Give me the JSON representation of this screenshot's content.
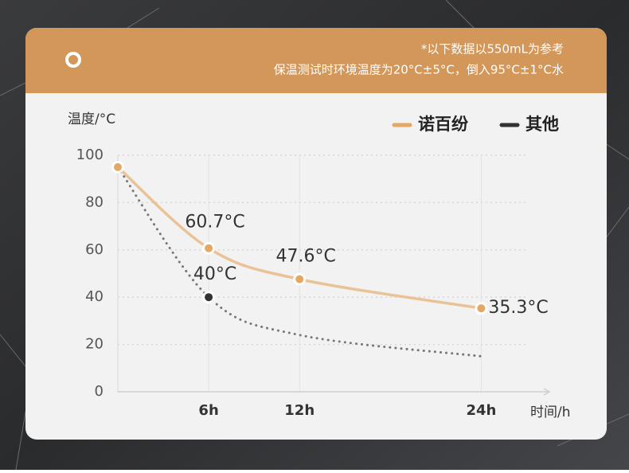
{
  "chart_data": {
    "type": "line",
    "notes": [
      "*以下数据以550mL为参考",
      "保温测试时环境温度为20°C±5°C，倒入95°C±1°C水"
    ],
    "y_label": "温度/°C",
    "x_label": "时间/h",
    "xlim": [
      0,
      28.5
    ],
    "ylim": [
      0,
      100
    ],
    "xticks": [
      {
        "value": 6,
        "label": "6h"
      },
      {
        "value": 12,
        "label": "12h"
      },
      {
        "value": 24,
        "label": "24h"
      }
    ],
    "yticks": [
      0,
      20,
      40,
      60,
      80,
      100
    ],
    "grid": true,
    "legend": "top-right",
    "series": [
      {
        "name": "诺百纷",
        "color": "#e9c396",
        "marker_color": "#e3a866",
        "style": "solid",
        "markers": true,
        "x": [
          0,
          6,
          12,
          24
        ],
        "values": [
          95,
          60.7,
          47.6,
          35.3
        ],
        "value_labels": [
          null,
          "60.7°C",
          "47.6°C",
          "35.3°C"
        ]
      },
      {
        "name": "其他",
        "color": "#777777",
        "marker_color": "#333333",
        "style": "dotted",
        "markers": false,
        "x": [
          0,
          6,
          12,
          24
        ],
        "values": [
          95,
          40,
          24,
          15
        ],
        "value_labels": [
          null,
          "40°C",
          null,
          null
        ]
      }
    ]
  }
}
